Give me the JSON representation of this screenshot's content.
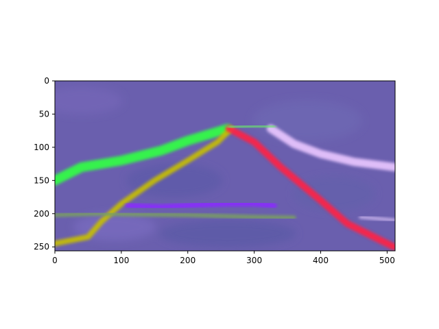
{
  "chart_data": {
    "type": "heatmap",
    "title": "",
    "xlabel": "",
    "ylabel": "",
    "xlim": [
      0,
      512
    ],
    "ylim": [
      256,
      0
    ],
    "x_ticks": [
      0,
      100,
      200,
      300,
      400,
      500
    ],
    "y_ticks": [
      0,
      50,
      100,
      150,
      200,
      250
    ],
    "x_tick_labels": [
      "0",
      "100",
      "200",
      "300",
      "400",
      "500"
    ],
    "y_tick_labels": [
      "0",
      "50",
      "100",
      "150",
      "200",
      "250"
    ],
    "grid": false,
    "image_description": "RGB image of predicted lane-line features over a blurred purple background",
    "background_color": "#6a5fae",
    "strokes": [
      {
        "name": "green-lane",
        "color": "#33ff44",
        "width": 14,
        "points": [
          [
            0,
            150
          ],
          [
            40,
            130
          ],
          [
            100,
            120
          ],
          [
            160,
            105
          ],
          [
            200,
            90
          ],
          [
            240,
            78
          ],
          [
            260,
            72
          ]
        ]
      },
      {
        "name": "yellow-lane",
        "color": "#c8c000",
        "width": 8,
        "points": [
          [
            0,
            245
          ],
          [
            50,
            235
          ],
          [
            70,
            212
          ],
          [
            100,
            185
          ],
          [
            150,
            150
          ],
          [
            200,
            120
          ],
          [
            245,
            92
          ],
          [
            265,
            72
          ]
        ]
      },
      {
        "name": "red-lane",
        "color": "#ff2244",
        "width": 10,
        "points": [
          [
            262,
            72
          ],
          [
            300,
            92
          ],
          [
            340,
            130
          ],
          [
            400,
            180
          ],
          [
            440,
            215
          ],
          [
            480,
            235
          ],
          [
            510,
            250
          ]
        ]
      },
      {
        "name": "light-purple-lane",
        "color": "#e9c6ff",
        "width": 12,
        "points": [
          [
            325,
            72
          ],
          [
            360,
            95
          ],
          [
            400,
            110
          ],
          [
            450,
            122
          ],
          [
            512,
            130
          ]
        ]
      },
      {
        "name": "violet-band",
        "color": "#8a2cff",
        "width": 8,
        "points": [
          [
            110,
            188
          ],
          [
            160,
            190
          ],
          [
            210,
            187
          ],
          [
            260,
            185
          ],
          [
            300,
            185
          ],
          [
            330,
            188
          ]
        ]
      },
      {
        "name": "faint-green-lane",
        "color": "#7aa060",
        "width": 6,
        "points": [
          [
            0,
            202
          ],
          [
            60,
            200
          ],
          [
            120,
            201
          ],
          [
            200,
            202
          ],
          [
            300,
            205
          ],
          [
            360,
            206
          ]
        ]
      },
      {
        "name": "light-green-top",
        "color": "#6ae070",
        "width": 5,
        "points": [
          [
            262,
            70
          ],
          [
            300,
            68
          ],
          [
            330,
            68
          ]
        ]
      },
      {
        "name": "pale-right-band",
        "color": "#c9b3ec",
        "width": 5,
        "points": [
          [
            460,
            205
          ],
          [
            512,
            210
          ]
        ]
      }
    ]
  }
}
